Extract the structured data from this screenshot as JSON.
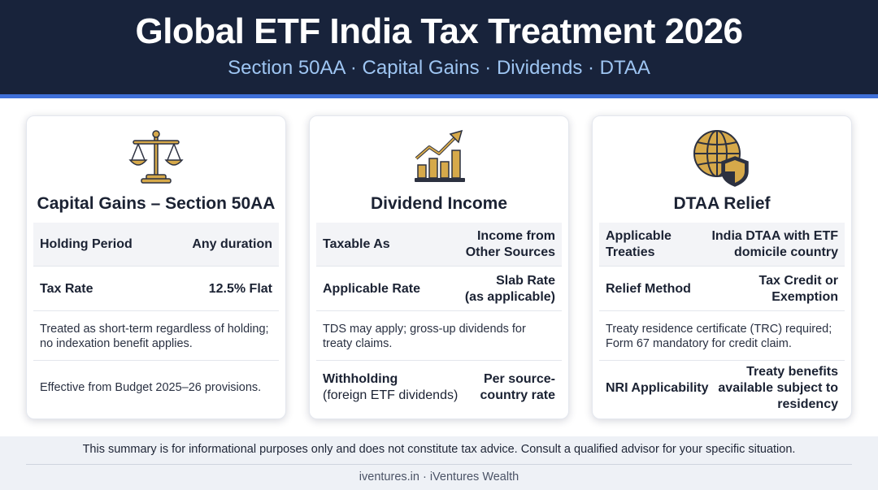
{
  "header": {
    "title": "Global ETF India Tax Treatment 2026",
    "subtitle": "Section 50AA · Capital Gains · Dividends · DTAA"
  },
  "colors": {
    "header_bg": "#18233b",
    "accent": "#3f6fd8",
    "subtitle": "#9ec5f2",
    "icon_gold": "#d6a94a",
    "icon_dark": "#2c3140"
  },
  "cards": [
    {
      "icon": "scales-icon",
      "title": "Capital Gains – Section 50AA",
      "rows": [
        {
          "label": "Holding Period",
          "value": "Any duration"
        },
        {
          "label": "Tax Rate",
          "value": "12.5% Flat"
        }
      ],
      "notes": [
        "Treated as short-term regardless of holding; no indexation benefit applies.",
        "Effective from Budget 2025–26 provisions."
      ]
    },
    {
      "icon": "chart-growth-icon",
      "title": "Dividend Income",
      "rows": [
        {
          "label": "Taxable As",
          "value_line1": "Income from",
          "value_line2": "Other Sources"
        },
        {
          "label": "Applicable Rate",
          "value_line1": "Slab Rate",
          "value_line2": "(as applicable)"
        }
      ],
      "note": "TDS may apply; gross-up dividends for treaty claims.",
      "withholding": {
        "label_line1": "Withholding",
        "label_line2": "(foreign ETF dividends)",
        "value_line1": "Per source-",
        "value_line2": "country rate"
      }
    },
    {
      "icon": "globe-shield-icon",
      "title": "DTAA Relief",
      "rows": [
        {
          "label_line1": "Applicable",
          "label_line2": "Treaties",
          "value_line1": "India DTAA with ETF",
          "value_line2": "domicile country"
        },
        {
          "label": "Relief Method",
          "value_line1": "Tax Credit or",
          "value_line2": "Exemption"
        }
      ],
      "note": "Treaty residence certificate (TRC) required; Form 67 mandatory for credit claim.",
      "nri": {
        "label": "NRI Applicability",
        "value_line1": "Treaty benefits",
        "value_line2": "available subject to",
        "value_line3": "residency"
      }
    }
  ],
  "footer": {
    "disclaimer": "This summary is for informational purposes only and does not constitute tax advice. Consult a qualified advisor for your specific situation.",
    "credit": "iventures.in · iVentures Wealth"
  }
}
